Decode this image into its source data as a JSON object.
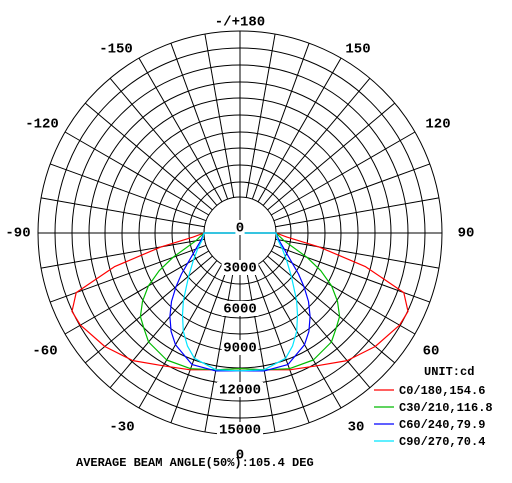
{
  "chart_data": {
    "type": "polar",
    "angle_labels": [
      "-/+180",
      "150",
      "-150",
      "120",
      "-120",
      "90",
      "-90",
      "60",
      "-60",
      "30",
      "-30",
      "0"
    ],
    "radial_tick_labels": [
      "0",
      "3000",
      "6000",
      "9000",
      "12000",
      "15000"
    ],
    "radial_range": [
      0,
      15000
    ],
    "unit_label": "UNIT:cd",
    "footer": "AVERAGE BEAM ANGLE(50%):105.4 DEG",
    "grid": true,
    "legend_position": "bottom-right",
    "series": [
      {
        "name": "C0/180,154.6",
        "color": "#ff0000",
        "angles_deg": [
          0,
          10,
          20,
          30,
          40,
          50,
          60,
          65,
          70,
          75,
          80,
          85,
          90
        ],
        "values": [
          9000,
          9300,
          9900,
          10600,
          11800,
          12700,
          13400,
          13500,
          12500,
          8500,
          4000,
          1000,
          0
        ]
      },
      {
        "name": "C30/210,116.8",
        "color": "#00bb00",
        "angles_deg": [
          0,
          10,
          20,
          30,
          40,
          45,
          50,
          55,
          60,
          65,
          70,
          80,
          90
        ],
        "values": [
          9000,
          9300,
          9800,
          10000,
          9600,
          9000,
          8500,
          7500,
          6300,
          4800,
          3200,
          800,
          0
        ]
      },
      {
        "name": "C60/240,79.9",
        "color": "#0000ff",
        "angles_deg": [
          0,
          10,
          20,
          30,
          35,
          40,
          45,
          50,
          55,
          60,
          70,
          80,
          90
        ],
        "values": [
          9200,
          9400,
          9400,
          8400,
          7600,
          6600,
          5500,
          4300,
          3200,
          2200,
          1000,
          300,
          0
        ]
      },
      {
        "name": "C90/270,70.4",
        "color": "#00e5ff",
        "angles_deg": [
          0,
          10,
          20,
          25,
          30,
          35,
          40,
          45,
          50,
          60,
          70,
          80,
          90
        ],
        "values": [
          9200,
          9300,
          8800,
          8000,
          7000,
          5800,
          4700,
          3600,
          2800,
          1600,
          800,
          200,
          0
        ]
      }
    ]
  }
}
